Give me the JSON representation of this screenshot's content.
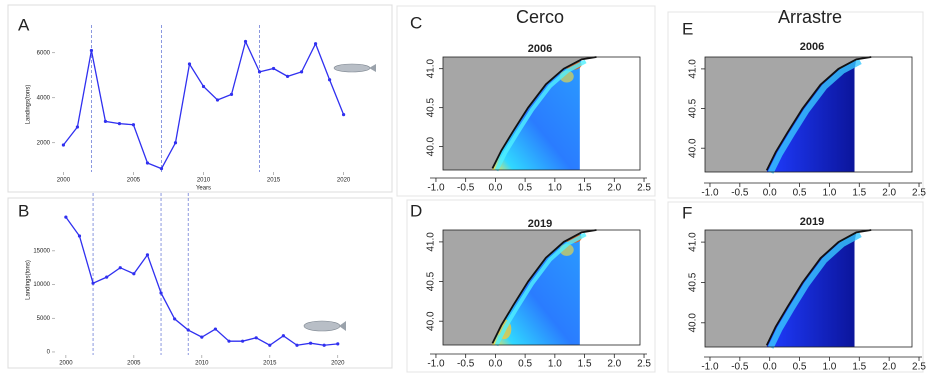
{
  "chart_data": [
    {
      "type": "line",
      "label": "A",
      "xlabel": "Years",
      "ylabel": "Landings(tons)",
      "color": "#3030f0",
      "x": [
        2000,
        2001,
        2002,
        2003,
        2004,
        2005,
        2006,
        2007,
        2008,
        2009,
        2010,
        2011,
        2012,
        2013,
        2014,
        2015,
        2016,
        2017,
        2018,
        2019,
        2020
      ],
      "values": [
        1900,
        2700,
        6100,
        2950,
        2850,
        2800,
        1100,
        850,
        2000,
        5500,
        4500,
        3900,
        4150,
        6500,
        5150,
        5300,
        4950,
        5150,
        6400,
        4800,
        3250
      ],
      "xlim": [
        1999.4,
        2020.6
      ],
      "xticks": [
        2000,
        2005,
        2010,
        2015,
        2020
      ],
      "ylim": [
        700,
        6700
      ],
      "yticks": [
        2000,
        4000,
        6000
      ],
      "vlines": [
        2002,
        2007,
        2014
      ]
    },
    {
      "type": "line",
      "label": "B",
      "ylabel": "Landings(tons)",
      "color": "#3030f0",
      "x": [
        2000,
        2001,
        2002,
        2003,
        2004,
        2005,
        2006,
        2007,
        2008,
        2009,
        2010,
        2011,
        2012,
        2013,
        2014,
        2015,
        2016,
        2017,
        2018,
        2019,
        2020
      ],
      "values": [
        20000,
        17200,
        10200,
        11100,
        12500,
        11600,
        14400,
        8750,
        4900,
        3250,
        2200,
        3400,
        1600,
        1600,
        2100,
        1000,
        2400,
        1000,
        1300,
        1000,
        1200
      ],
      "xlim": [
        1999.2,
        2020.9
      ],
      "xticks": [
        2000,
        2005,
        2010,
        2015,
        2020
      ],
      "ylim": [
        -450,
        21800
      ],
      "yticks": [
        0,
        5000,
        10000,
        15000
      ],
      "vlines": [
        2002,
        2007,
        2009
      ]
    },
    {
      "type": "map",
      "label": "C",
      "heading": "Cerco",
      "title": "2006",
      "xlim": [
        -1.1,
        2.55
      ],
      "xticks": [
        {
          "value": -1,
          "label": "-1.0"
        },
        {
          "value": -0.5,
          "label": "-0.5"
        },
        {
          "value": 0,
          "label": "0.0"
        },
        {
          "value": 0.5,
          "label": "0.5"
        },
        {
          "value": 1,
          "label": "1.0"
        },
        {
          "value": 1.5,
          "label": "1.5"
        },
        {
          "value": 2,
          "label": "2.0"
        },
        {
          "value": 2.5,
          "label": "2.5"
        }
      ],
      "ylim": [
        39.7,
        41.15
      ],
      "yticks": [
        {
          "value": 40,
          "label": "40.0"
        },
        40.5,
        {
          "value": 41,
          "label": "41.0"
        }
      ]
    },
    {
      "type": "map",
      "label": "D",
      "title": "2019",
      "xlim": [
        -1.1,
        2.55
      ],
      "xticks": [
        {
          "value": -1,
          "label": "-1.0"
        },
        {
          "value": -0.5,
          "label": "-0.5"
        },
        {
          "value": 0,
          "label": "0.0"
        },
        {
          "value": 0.5,
          "label": "0.5"
        },
        {
          "value": 1,
          "label": "1.0"
        },
        {
          "value": 1.5,
          "label": "1.5"
        },
        {
          "value": 2,
          "label": "2.0"
        },
        {
          "value": 2.5,
          "label": "2.5"
        }
      ],
      "ylim": [
        39.7,
        41.15
      ],
      "yticks": [
        {
          "value": 40,
          "label": "40.0"
        },
        40.5,
        {
          "value": 41,
          "label": "41.0"
        }
      ]
    },
    {
      "type": "map",
      "label": "E",
      "heading": "Arrastre",
      "title": "2006",
      "xlim": [
        -1.1,
        2.55
      ],
      "xticks": [
        {
          "value": -1,
          "label": "-1.0"
        },
        {
          "value": -0.5,
          "label": "-0.5"
        },
        {
          "value": 0,
          "label": "0.0"
        },
        {
          "value": 0.5,
          "label": "0.5"
        },
        {
          "value": 1,
          "label": "1.0"
        },
        {
          "value": 1.5,
          "label": "1.5"
        },
        {
          "value": 2,
          "label": "2.0"
        },
        {
          "value": 2.5,
          "label": "2.5"
        }
      ],
      "ylim": [
        39.7,
        41.15
      ],
      "yticks": [
        {
          "value": 40,
          "label": "40.0"
        },
        40.5,
        {
          "value": 41,
          "label": "41.0"
        }
      ]
    },
    {
      "type": "map",
      "label": "F",
      "title": "2019",
      "xlim": [
        -1.1,
        2.55
      ],
      "xticks": [
        {
          "value": -1,
          "label": "-1.0"
        },
        {
          "value": -0.5,
          "label": "-0.5"
        },
        {
          "value": 0,
          "label": "0.0"
        },
        {
          "value": 0.5,
          "label": "0.5"
        },
        {
          "value": 1,
          "label": "1.0"
        },
        {
          "value": 1.5,
          "label": "1.5"
        },
        {
          "value": 2,
          "label": "2.0"
        },
        {
          "value": 2.5,
          "label": "2.5"
        }
      ],
      "ylim": [
        39.7,
        41.15
      ],
      "yticks": [
        {
          "value": 40,
          "label": "40.0"
        },
        40.5,
        {
          "value": 41,
          "label": "41.0"
        }
      ]
    }
  ]
}
